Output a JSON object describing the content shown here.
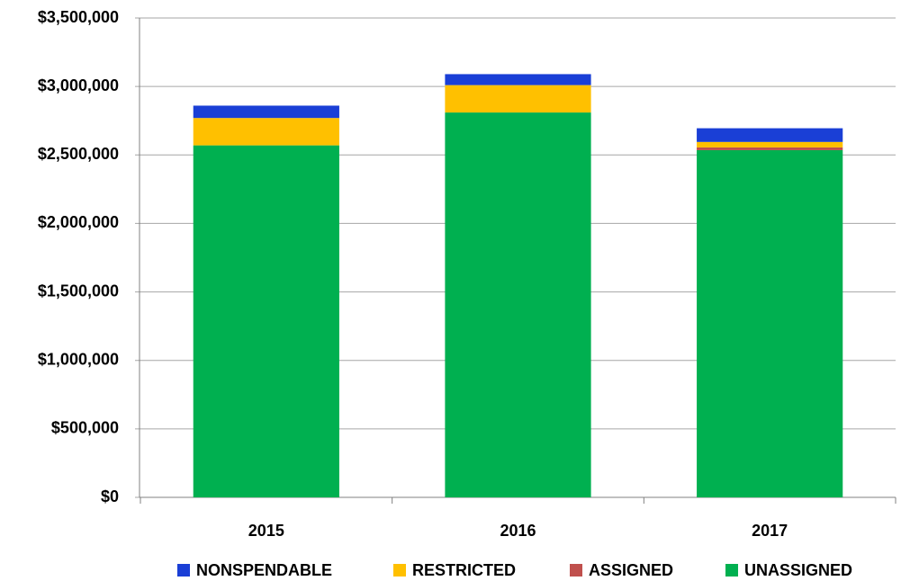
{
  "chart_data": {
    "type": "stacked_bar",
    "categories": [
      "2015",
      "2016",
      "2017"
    ],
    "series": [
      {
        "name": "NONSPENDABLE",
        "color": "#1a3fd6",
        "values": [
          90000,
          80000,
          100000
        ]
      },
      {
        "name": "RESTRICTED",
        "color": "#ffc000",
        "values": [
          200000,
          200000,
          40000
        ]
      },
      {
        "name": "ASSIGNED",
        "color": "#c0504d",
        "values": [
          0,
          0,
          20000
        ]
      },
      {
        "name": "UNASSIGNED",
        "color": "#00b050",
        "values": [
          2570000,
          2810000,
          2535000
        ]
      }
    ],
    "ylim": [
      0,
      3500000
    ],
    "yticks": [
      {
        "value": 0,
        "label": "$0"
      },
      {
        "value": 500000,
        "label": "$500,000"
      },
      {
        "value": 1000000,
        "label": "$1,000,000"
      },
      {
        "value": 1500000,
        "label": "$1,500,000"
      },
      {
        "value": 2000000,
        "label": "$2,000,000"
      },
      {
        "value": 2500000,
        "label": "$2,500,000"
      },
      {
        "value": 3000000,
        "label": "$3,000,000"
      },
      {
        "value": 3500000,
        "label": "$3,500,000"
      }
    ],
    "grid": true,
    "legend": "bottom"
  }
}
